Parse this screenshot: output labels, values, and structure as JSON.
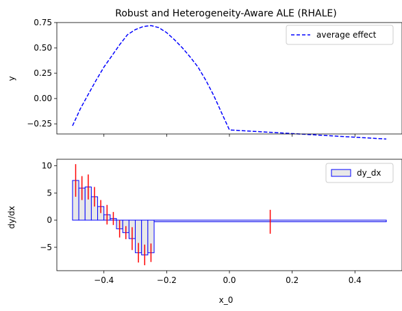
{
  "chart_data": [
    {
      "type": "line",
      "title": "Robust and Heterogeneity-Aware ALE (RHALE)",
      "xlabel": "",
      "ylabel": "y",
      "xlim": [
        -0.55,
        0.55
      ],
      "ylim": [
        -0.35,
        0.75
      ],
      "xticks": [
        -0.4,
        -0.2,
        0.0,
        0.2,
        0.4
      ],
      "xtick_labels_shown": false,
      "yticks": [
        -0.25,
        0.0,
        0.25,
        0.5,
        0.75
      ],
      "ytick_labels": [
        "−0.25",
        "0.00",
        "0.25",
        "0.50",
        "0.75"
      ],
      "legend": {
        "position": "upper-right",
        "entries": [
          "average effect"
        ]
      },
      "series": [
        {
          "name": "average effect",
          "color": "#0000ff",
          "style": "dashed",
          "x": [
            -0.5,
            -0.475,
            -0.45,
            -0.425,
            -0.4,
            -0.375,
            -0.35,
            -0.325,
            -0.3,
            -0.275,
            -0.25,
            -0.225,
            -0.2,
            -0.175,
            -0.15,
            -0.125,
            -0.1,
            -0.075,
            -0.05,
            -0.025,
            0.0,
            0.5
          ],
          "y": [
            -0.27,
            -0.1,
            0.04,
            0.18,
            0.31,
            0.42,
            0.53,
            0.63,
            0.68,
            0.71,
            0.72,
            0.7,
            0.65,
            0.58,
            0.5,
            0.41,
            0.31,
            0.18,
            0.03,
            -0.14,
            -0.31,
            -0.4
          ]
        }
      ],
      "grid": false
    },
    {
      "type": "bar",
      "title": "",
      "xlabel": "x_0",
      "ylabel": "dy/dx",
      "xlim": [
        -0.55,
        0.55
      ],
      "ylim": [
        -9.3,
        11.2
      ],
      "xticks": [
        -0.4,
        -0.2,
        0.0,
        0.2,
        0.4
      ],
      "xtick_labels": [
        "−0.4",
        "−0.2",
        "0.0",
        "0.2",
        "0.4"
      ],
      "yticks": [
        -5,
        0,
        5,
        10
      ],
      "ytick_labels": [
        "−5",
        "0",
        "5",
        "10"
      ],
      "legend": {
        "position": "upper-right",
        "entries": [
          "dy_dx"
        ]
      },
      "bar_color": "#e8e8e8",
      "bar_edge_color": "#0000ff",
      "errorbar_color": "#ff0000",
      "bars": [
        {
          "x0": -0.5,
          "x1": -0.48,
          "value": 7.3,
          "err": 3.0
        },
        {
          "x0": -0.48,
          "x1": -0.46,
          "value": 5.9,
          "err": 2.2
        },
        {
          "x0": -0.46,
          "x1": -0.44,
          "value": 6.1,
          "err": 2.3
        },
        {
          "x0": -0.44,
          "x1": -0.42,
          "value": 4.3,
          "err": 1.8
        },
        {
          "x0": -0.42,
          "x1": -0.4,
          "value": 2.5,
          "err": 1.2
        },
        {
          "x0": -0.4,
          "x1": -0.38,
          "value": 1.0,
          "err": 1.8
        },
        {
          "x0": -0.38,
          "x1": -0.36,
          "value": 0.3,
          "err": 1.2
        },
        {
          "x0": -0.36,
          "x1": -0.34,
          "value": -1.6,
          "err": 1.6
        },
        {
          "x0": -0.34,
          "x1": -0.32,
          "value": -2.3,
          "err": 1.2
        },
        {
          "x0": -0.32,
          "x1": -0.3,
          "value": -3.4,
          "err": 2.1
        },
        {
          "x0": -0.3,
          "x1": -0.28,
          "value": -6.0,
          "err": 1.8
        },
        {
          "x0": -0.28,
          "x1": -0.26,
          "value": -6.4,
          "err": 1.9
        },
        {
          "x0": -0.26,
          "x1": -0.24,
          "value": -6.0,
          "err": 1.7
        },
        {
          "x0": -0.24,
          "x1": 0.5,
          "value": -0.3,
          "err": 2.2
        }
      ],
      "grid": false
    }
  ]
}
